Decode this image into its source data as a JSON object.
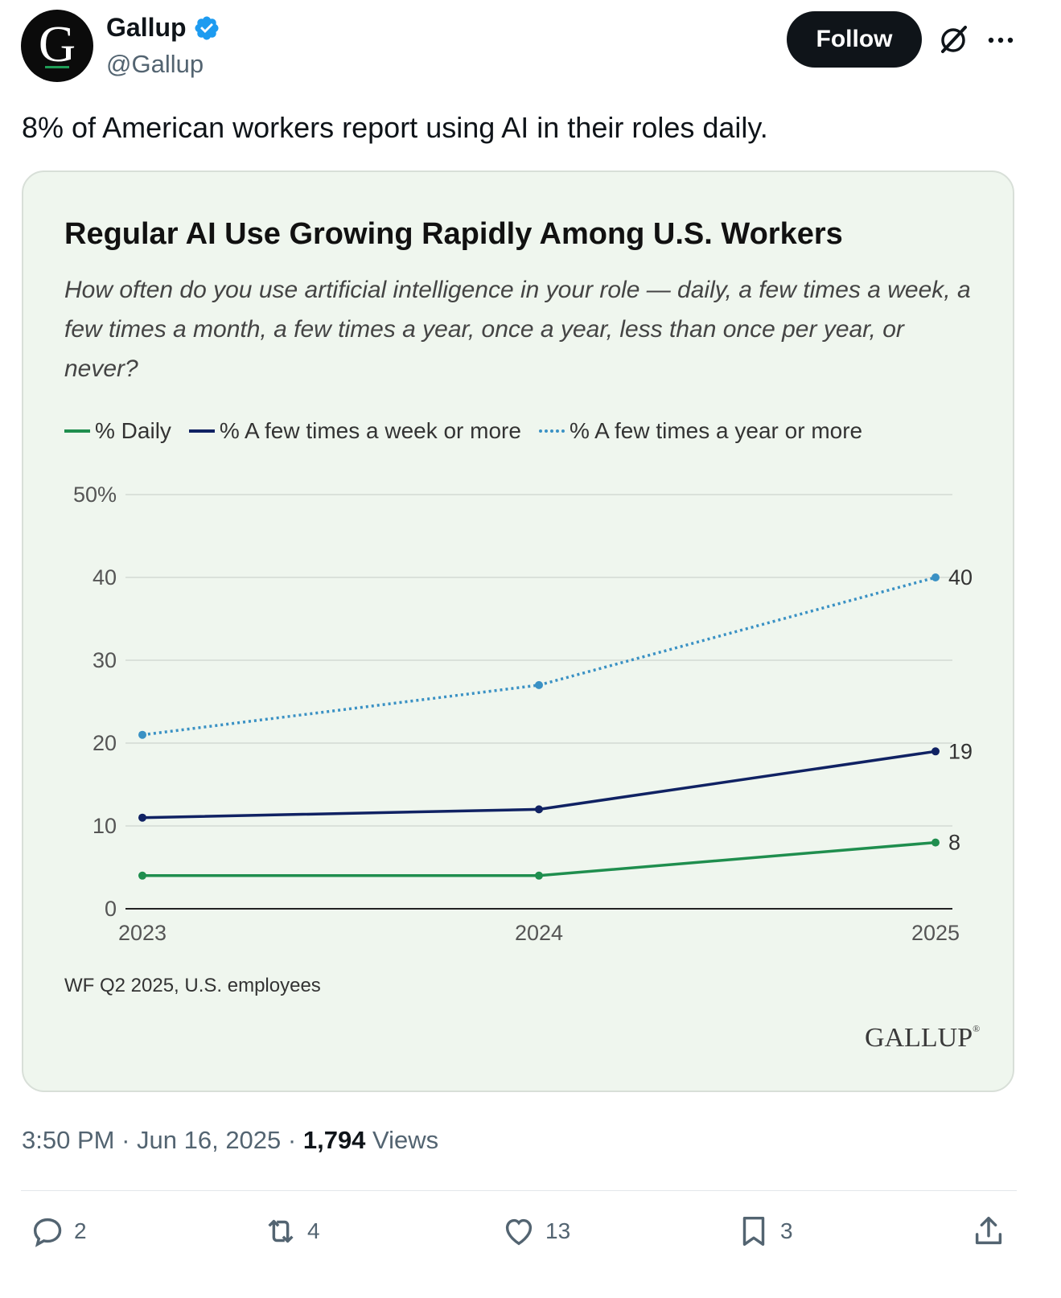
{
  "account": {
    "avatar_letter": "G",
    "display_name": "Gallup",
    "handle": "@Gallup",
    "follow_label": "Follow"
  },
  "tweet": {
    "text": "8% of American workers report using AI in their roles daily."
  },
  "card": {
    "title": "Regular AI Use Growing Rapidly Among U.S. Workers",
    "subtitle": "How often do you use artificial intelligence in your role — daily, a few times a week, a few times a month, a few times a year, once a year, less than once per year, or never?",
    "source": "WF Q2 2025, U.S. employees",
    "logo_text": "GALLUP"
  },
  "chart_data": {
    "type": "line",
    "x": [
      "2023",
      "2024",
      "2025"
    ],
    "ylim": [
      0,
      50
    ],
    "yticks": [
      "0",
      "10",
      "20",
      "30",
      "40",
      "50%"
    ],
    "grid": true,
    "legend_position": "top-left",
    "series": [
      {
        "name": "% Daily",
        "values": [
          4,
          4,
          8
        ],
        "color": "#1f8e4e",
        "style": "solid",
        "end_label": "8"
      },
      {
        "name": "% A few times a week or more",
        "values": [
          11,
          12,
          19
        ],
        "color": "#102263",
        "style": "solid",
        "end_label": "19"
      },
      {
        "name": "% A few times a year or more",
        "values": [
          21,
          27,
          40
        ],
        "color": "#3a91c4",
        "style": "dotted",
        "end_label": "40"
      }
    ]
  },
  "meta": {
    "time": "3:50 PM",
    "date": "Jun 16, 2025",
    "views_count": "1,794",
    "views_label": "Views"
  },
  "actions": {
    "replies": "2",
    "reposts": "4",
    "likes": "13",
    "bookmarks": "3"
  },
  "icons": {
    "verified": "verified-badge-icon",
    "grok": "grok-icon",
    "more": "more-icon",
    "reply": "reply-icon",
    "repost": "repost-icon",
    "like": "heart-icon",
    "bookmark": "bookmark-icon",
    "share": "share-icon"
  },
  "colors": {
    "card_bg": "#eff6ee",
    "follow_bg": "#0f1419",
    "verified": "#1d9bf0"
  }
}
